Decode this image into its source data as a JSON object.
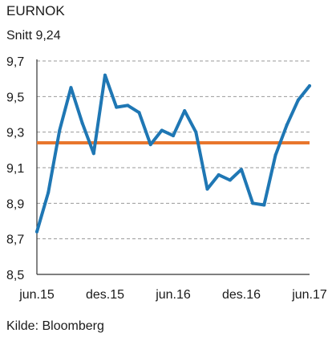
{
  "title": "EURNOK",
  "subtitle": "Snitt 9,24",
  "source": "Kilde: Bloomberg",
  "colors": {
    "series": "#1f77b4",
    "average": "#e8762d",
    "grid": "#999999",
    "axis": "#333333"
  },
  "chart_data": {
    "type": "line",
    "title": "EURNOK",
    "xlabel": "",
    "ylabel": "",
    "ylim": [
      8.5,
      9.7
    ],
    "grid": true,
    "x_tick_labels": [
      "jun.15",
      "des.15",
      "jun.16",
      "des.16",
      "jun.17"
    ],
    "y_ticks": [
      8.5,
      8.7,
      8.9,
      9.1,
      9.3,
      9.5,
      9.7
    ],
    "y_tick_labels": [
      "8,5",
      "8,7",
      "8,9",
      "9,1",
      "9,3",
      "9,5",
      "9,7"
    ],
    "average": 9.24,
    "series": [
      {
        "values": [
          8.74,
          8.96,
          9.31,
          9.55,
          9.35,
          9.18,
          9.62,
          9.44,
          9.45,
          9.41,
          9.23,
          9.31,
          9.28,
          9.42,
          9.3,
          8.98,
          9.06,
          9.03,
          9.09,
          8.9,
          8.89,
          9.17,
          9.34,
          9.48,
          9.56
        ]
      }
    ]
  }
}
